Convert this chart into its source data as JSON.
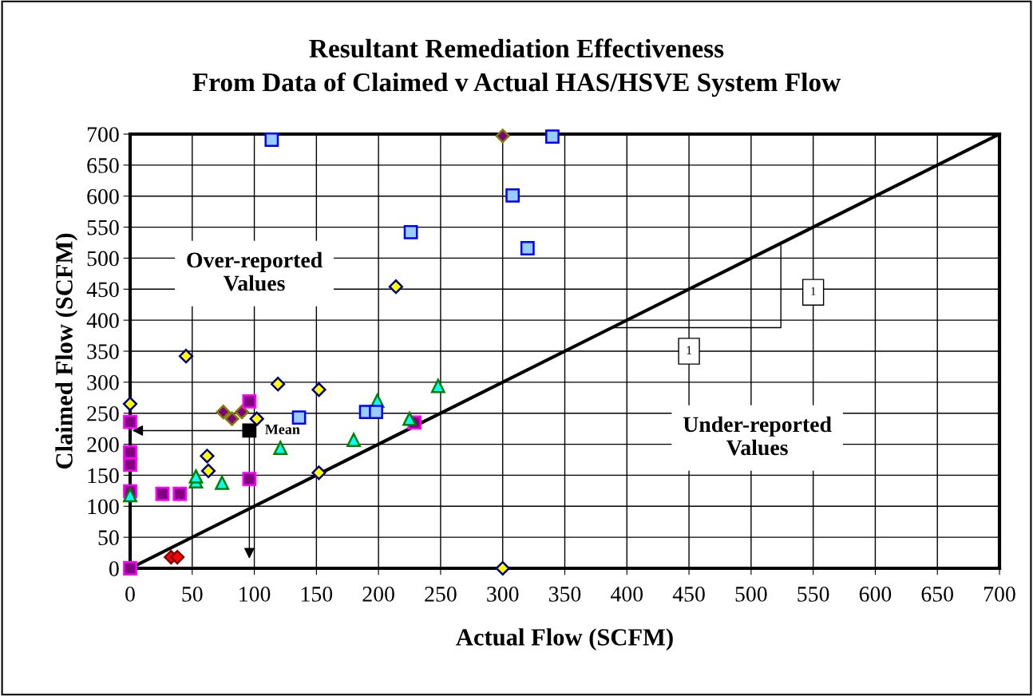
{
  "chart_data": {
    "type": "scatter",
    "title": "Resultant Remediation Effectiveness\nFrom Data of Claimed v Actual HAS/HSVE System Flow",
    "xlabel": "Actual Flow (SCFM)",
    "ylabel": "Claimed Flow (SCFM)",
    "xlim": [
      0,
      700
    ],
    "ylim": [
      0,
      700
    ],
    "xticks": [
      0,
      50,
      100,
      150,
      200,
      250,
      300,
      350,
      400,
      450,
      500,
      550,
      600,
      650,
      700
    ],
    "yticks": [
      0,
      50,
      100,
      150,
      200,
      250,
      300,
      350,
      400,
      450,
      500,
      550,
      600,
      650,
      700
    ],
    "grid": true,
    "series": [
      {
        "type": "line",
        "color": "#000000",
        "x": [
          0,
          700
        ],
        "values": [
          0,
          700
        ]
      },
      {
        "color": "#ffff00",
        "marker": "diamond",
        "x": [
          0,
          45,
          62,
          63,
          102,
          119,
          152,
          152,
          214,
          300
        ],
        "values": [
          265,
          342,
          181,
          157,
          241,
          297,
          288,
          154,
          454,
          0
        ]
      },
      {
        "color": "#800080",
        "marker": "diamond",
        "x": [
          75,
          82,
          90,
          300
        ],
        "values": [
          252,
          241,
          252,
          697
        ]
      },
      {
        "color": "#ff0000",
        "marker": "diamond",
        "x": [
          33,
          38
        ],
        "values": [
          18,
          18
        ]
      },
      {
        "color": "#800080",
        "marker": "square",
        "x": [
          0,
          0,
          0,
          0,
          0,
          26,
          40,
          96,
          96,
          229
        ],
        "values": [
          236,
          187,
          167,
          124,
          0,
          120,
          120,
          269,
          144,
          235
        ]
      },
      {
        "color": "#00ffff",
        "marker": "triangle",
        "x": [
          0,
          53,
          53,
          74,
          121,
          180,
          199,
          225,
          248
        ],
        "values": [
          118,
          140,
          148,
          138,
          194,
          207,
          270,
          241,
          294
        ]
      },
      {
        "color": "#99ccff",
        "marker": "square",
        "x": [
          114,
          136,
          190,
          198,
          226,
          308,
          320,
          340
        ],
        "values": [
          691,
          243,
          252,
          252,
          542,
          601,
          516,
          696
        ]
      },
      {
        "color": "#000000",
        "marker": "square",
        "x": [
          96
        ],
        "values": [
          222
        ]
      }
    ],
    "annotations": [
      {
        "text": "Mean",
        "x": 96,
        "y": 222
      },
      "Over-reported\nValues",
      "Under-reported\nValues",
      "1",
      "1"
    ]
  }
}
